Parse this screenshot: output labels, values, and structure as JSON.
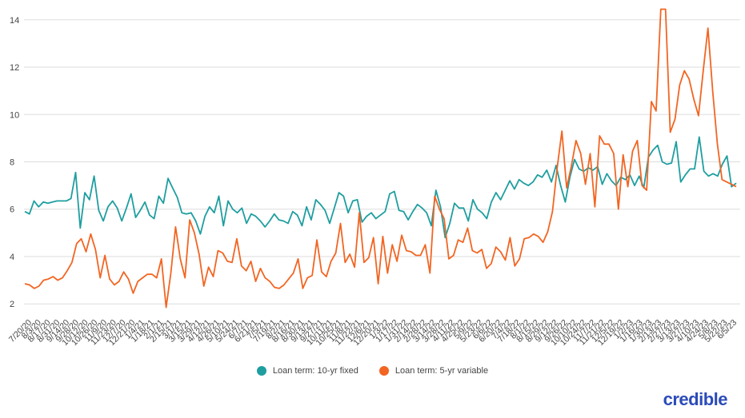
{
  "brand": {
    "logo_text": "credible"
  },
  "chart_data": {
    "type": "line",
    "title": "",
    "xlabel": "",
    "ylabel": "",
    "ylim": [
      1.5,
      14.5
    ],
    "yticks": [
      2,
      4,
      6,
      8,
      10,
      12,
      14
    ],
    "grid": true,
    "legend_position": "bottom",
    "x_tick_labels": [
      "7/20/20",
      "8/3/20",
      "8/17/20",
      "8/31/20",
      "9/14/20",
      "9/28/20",
      "10/12/20",
      "10/26/20",
      "11/9/20",
      "11/23/20",
      "12/7/20",
      "12/21/20",
      "1/4/21",
      "1/18/21",
      "2/1/21",
      "2/15/21",
      "3/1/21",
      "3/15/21",
      "3/29/21",
      "4/12/21",
      "4/26/21",
      "5/10/21",
      "5/24/21",
      "6/7/21",
      "6/21/21",
      "7/5/21",
      "7/19/21",
      "8/2/21",
      "8/16/21",
      "8/30/21",
      "9/13/21",
      "9/27/21",
      "10/11/21",
      "10/25/21",
      "11/8/21",
      "11/22/21",
      "12/6/21",
      "12/20/21",
      "1/3/22",
      "1/17/22",
      "1/31/22",
      "2/14/22",
      "2/28/22",
      "3/14/22",
      "3/28/22",
      "4/11/22",
      "4/25/22",
      "5/9/22",
      "5/23/22",
      "6/6/22",
      "6/20/22",
      "7/4/22",
      "7/18/22",
      "8/1/22",
      "8/15/22",
      "8/29/22",
      "9/12/22",
      "9/26/22",
      "10/10/22",
      "10/24/22",
      "11/7/22",
      "11/21/22",
      "12/5/22",
      "12/19/22",
      "1/2/23",
      "1/16/23",
      "1/30/23",
      "2/13/23",
      "2/27/23",
      "3/13/23",
      "3/27/23",
      "4/10/23",
      "4/24/23",
      "5/8/23",
      "5/22/23",
      "6/5/23"
    ],
    "series": [
      {
        "name": "Loan term: 10-yr fixed",
        "color": "#1f9ea0",
        "values": [
          5.9,
          5.8,
          6.35,
          6.1,
          6.3,
          6.25,
          6.3,
          6.35,
          6.35,
          6.35,
          6.45,
          7.55,
          5.2,
          6.7,
          6.4,
          7.4,
          5.95,
          5.5,
          6.1,
          6.35,
          6.05,
          5.5,
          6.05,
          6.65,
          5.65,
          5.95,
          6.3,
          5.75,
          5.6,
          6.55,
          6.25,
          7.3,
          6.9,
          6.5,
          5.85,
          5.8,
          5.85,
          5.5,
          4.95,
          5.7,
          6.1,
          5.85,
          6.55,
          5.3,
          6.35,
          6.0,
          5.85,
          6.05,
          5.4,
          5.8,
          5.7,
          5.5,
          5.25,
          5.5,
          5.8,
          5.55,
          5.5,
          5.4,
          5.9,
          5.75,
          5.3,
          6.1,
          5.55,
          6.4,
          6.2,
          5.95,
          5.4,
          6.05,
          6.7,
          6.55,
          5.85,
          6.35,
          6.4,
          5.45,
          5.7,
          5.85,
          5.6,
          5.75,
          5.9,
          6.65,
          6.75,
          5.95,
          5.9,
          5.55,
          5.9,
          6.2,
          6.05,
          5.85,
          5.3,
          6.8,
          6.1,
          4.8,
          5.4,
          6.25,
          6.05,
          6.05,
          5.5,
          6.4,
          6.0,
          5.85,
          5.6,
          6.3,
          6.7,
          6.4,
          6.8,
          7.2,
          6.85,
          7.25,
          7.1,
          7.0,
          7.15,
          7.45,
          7.35,
          7.65,
          7.15,
          7.85,
          7.0,
          6.3,
          7.35,
          8.1,
          7.7,
          7.6,
          7.75,
          7.65,
          7.8,
          7.05,
          7.5,
          7.2,
          7.0,
          7.35,
          7.25,
          7.45,
          7.0,
          7.4,
          6.9,
          8.2,
          8.5,
          8.7,
          8.0,
          7.9,
          7.95,
          8.85,
          7.15,
          7.45,
          7.7,
          7.7,
          9.05,
          7.6,
          7.4,
          7.5,
          7.4,
          7.9,
          8.25,
          6.95,
          7.1
        ]
      },
      {
        "name": "Loan term: 5-yr variable",
        "color": "#f26522",
        "values": [
          2.85,
          2.8,
          2.65,
          2.75,
          3.0,
          3.05,
          3.15,
          3.0,
          3.1,
          3.4,
          3.75,
          4.55,
          4.75,
          4.2,
          4.95,
          4.3,
          3.1,
          4.05,
          3.05,
          2.8,
          2.95,
          3.35,
          3.05,
          2.45,
          2.95,
          3.1,
          3.25,
          3.25,
          3.1,
          3.9,
          1.85,
          3.3,
          5.25,
          3.9,
          3.1,
          5.55,
          5.0,
          4.1,
          2.75,
          3.55,
          3.15,
          4.25,
          4.15,
          3.8,
          3.75,
          4.75,
          3.6,
          3.4,
          3.8,
          2.95,
          3.5,
          3.1,
          2.95,
          2.7,
          2.65,
          2.8,
          3.05,
          3.3,
          3.9,
          2.65,
          3.1,
          3.2,
          4.7,
          3.35,
          3.15,
          3.8,
          4.15,
          5.4,
          3.75,
          4.1,
          3.55,
          5.85,
          3.75,
          3.95,
          4.8,
          2.85,
          4.85,
          3.3,
          4.5,
          3.8,
          4.9,
          4.25,
          4.2,
          4.05,
          4.05,
          4.5,
          3.3,
          6.55,
          6.0,
          5.6,
          3.9,
          4.05,
          4.7,
          4.6,
          5.2,
          4.25,
          4.15,
          4.3,
          3.5,
          3.7,
          4.4,
          4.2,
          3.85,
          4.8,
          3.6,
          3.9,
          4.75,
          4.8,
          4.95,
          4.85,
          4.6,
          5.05,
          5.9,
          7.75,
          9.3,
          6.9,
          7.8,
          8.9,
          8.35,
          7.05,
          8.35,
          6.1,
          9.1,
          8.75,
          8.75,
          8.35,
          6.0,
          8.3,
          6.95,
          8.45,
          8.9,
          7.0,
          6.8,
          10.55,
          10.15,
          14.45,
          14.45,
          9.25,
          9.8,
          11.25,
          11.85,
          11.5,
          10.65,
          9.95,
          11.85,
          13.65,
          11.0,
          8.75,
          7.25,
          7.15,
          7.05,
          6.95
        ]
      }
    ]
  }
}
